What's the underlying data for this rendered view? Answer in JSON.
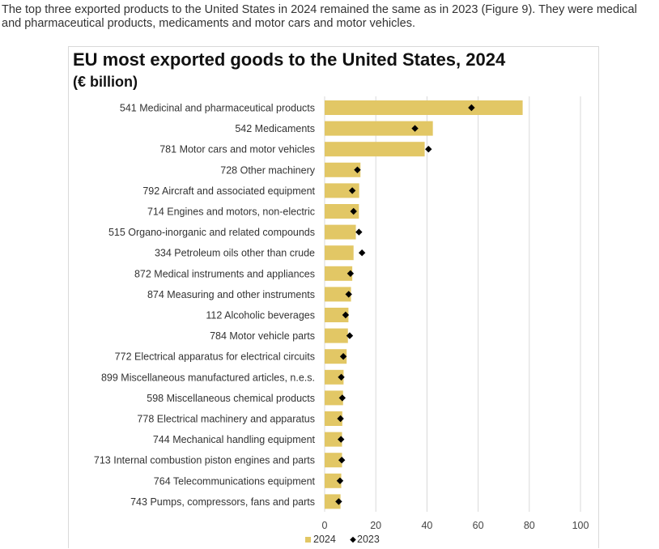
{
  "intro_text": "The top three exported products to the United States in 2024 remained the same as in 2023 (Figure 9). They were medical and pharmaceutical products, medicaments and motor cars and motor vehicles.",
  "colors": {
    "bar_2024": "#e2c765",
    "marker_2023": "#000000",
    "grid": "#d9d9d9"
  },
  "chart_data": {
    "type": "bar",
    "orientation": "horizontal",
    "title": "EU most exported goods to the United States, 2024",
    "subtitle": "(€ billion)",
    "xlim": [
      0,
      100
    ],
    "xticks": [
      0,
      20,
      40,
      60,
      80,
      100
    ],
    "categories": [
      "541 Medicinal and pharmaceutical products",
      "542 Medicaments",
      "781 Motor cars and motor vehicles",
      "728 Other machinery",
      "792 Aircraft and associated equipment",
      "714 Engines and motors, non-electric",
      "515 Organo-inorganic and related compounds",
      "334 Petroleum oils other than crude",
      "872 Medical instruments and appliances",
      "874 Measuring and other instruments",
      "112 Alcoholic beverages",
      "784 Motor vehicle parts",
      "772 Electrical apparatus for electrical circuits",
      "899 Miscellaneous manufactured articles, n.e.s.",
      "598 Miscellaneous chemical products",
      "778 Electrical machinery and apparatus",
      "744 Mechanical handling equipment",
      "713 Internal combustion piston engines and parts",
      "764 Telecommunications equipment",
      "743 Pumps, compressors, fans and parts"
    ],
    "series": [
      {
        "name": "2024",
        "kind": "bar",
        "values": [
          77.4,
          42.3,
          39.1,
          14.0,
          13.5,
          13.4,
          12.2,
          11.3,
          10.8,
          10.3,
          9.3,
          9.1,
          8.6,
          7.4,
          7.2,
          6.9,
          6.8,
          6.8,
          6.5,
          6.2
        ]
      },
      {
        "name": "2023",
        "kind": "marker",
        "values": [
          57.4,
          35.3,
          40.6,
          12.8,
          10.8,
          11.3,
          13.4,
          14.6,
          10.1,
          9.4,
          8.2,
          9.8,
          7.3,
          6.5,
          6.9,
          6.2,
          6.4,
          6.7,
          6.0,
          5.5
        ]
      }
    ],
    "legend": [
      "2024",
      "2023"
    ],
    "legend_position": "bottom"
  }
}
